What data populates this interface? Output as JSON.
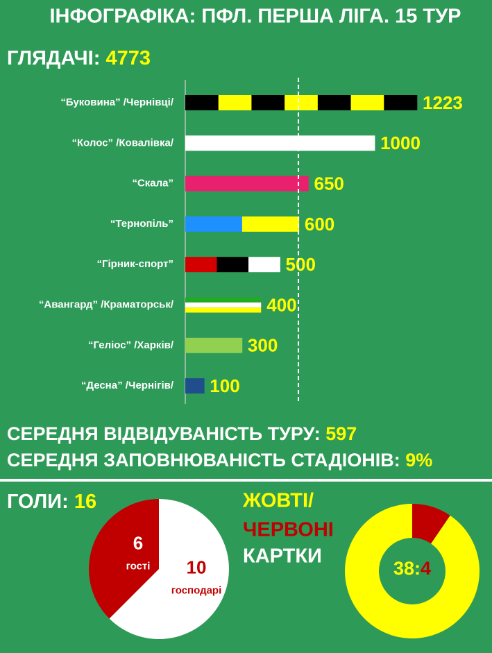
{
  "title": "ІНФОГРАФІКА: ПФЛ. ПЕРША ЛІГА. 15 ТУР",
  "chart_data": [
    {
      "type": "bar",
      "title": "ГЛЯДАЧІ:",
      "total": 4773,
      "categories": [
        "“Буковина” /Чернівці/",
        "“Колос” /Ковалівка/",
        "“Скала”",
        "“Тернопіль”",
        "“Гірник-спорт”",
        "“Авангард” /Краматорськ/",
        "“Геліос” /Харків/",
        "“Десна” /Чернігів/"
      ],
      "values": [
        1223,
        1000,
        650,
        600,
        500,
        400,
        300,
        100
      ],
      "bar_colors": [
        [
          "#000000",
          "#ffff00",
          "#000000",
          "#ffff00",
          "#000000",
          "#ffff00",
          "#000000"
        ],
        [
          "#ffffff"
        ],
        [
          "#e8206e"
        ],
        [
          "#1e90ff",
          "#ffff00"
        ],
        [
          "#d40000",
          "#000000",
          "#ffffff"
        ],
        [
          "#22aa22",
          "#ffffff",
          "#ffff00"
        ],
        [
          "#92d050"
        ],
        [
          "#1f4e8c"
        ]
      ],
      "stripe_direction": [
        "vertical",
        "vertical",
        "vertical",
        "vertical",
        "vertical",
        "horizontal",
        "vertical",
        "vertical"
      ]
    },
    {
      "type": "pie",
      "title": "ГОЛИ:",
      "total": 16,
      "categories": [
        "гості",
        "господарі"
      ],
      "values": [
        6,
        10
      ],
      "colors": [
        "#c00000",
        "#ffffff"
      ],
      "label_colors": [
        "#ffffff",
        "#c00000"
      ],
      "direction": "counterclockwise"
    },
    {
      "type": "donut",
      "categories": [
        "ЖОВТІ/",
        "ЧЕРВОНІ"
      ],
      "title": "КАРТКИ",
      "values": [
        38,
        4
      ],
      "separator": ":",
      "colors": [
        "#ffff00",
        "#c00000"
      ],
      "direction": "counterclockwise"
    }
  ],
  "stats": [
    {
      "label": "СЕРЕДНЯ ВІДВІДУВАНІСТЬ ТУРУ:",
      "value": 597
    },
    {
      "label": "СЕРЕДНЯ ЗАПОВНЮВАНІСТЬ СТАДІОНІВ:",
      "value": 9,
      "value_label": "9%"
    }
  ]
}
